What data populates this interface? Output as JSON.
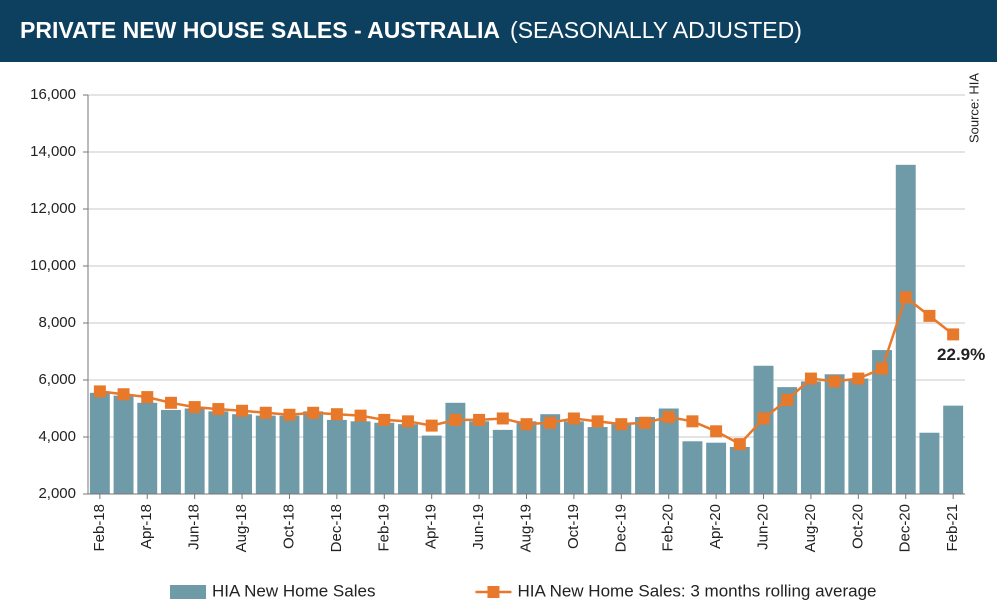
{
  "chart_data": {
    "type": "bar",
    "title": "PRIVATE NEW HOUSE SALES -  AUSTRALIA",
    "subtitle": "(SEASONALLY ADJUSTED)",
    "source": "Source: HIA",
    "annotation": "22.9%",
    "categories": [
      "Feb-18",
      null,
      "Apr-18",
      null,
      "Jun-18",
      null,
      "Aug-18",
      null,
      "Oct-18",
      null,
      "Dec-18",
      null,
      "Feb-19",
      null,
      "Apr-19",
      null,
      "Jun-19",
      null,
      "Aug-19",
      null,
      "Oct-19",
      null,
      "Dec-19",
      null,
      "Feb-20",
      null,
      "Apr-20",
      null,
      "Jun-20",
      null,
      "Aug-20",
      null,
      "Oct-20",
      null,
      "Dec-20",
      null,
      "Feb-21"
    ],
    "series": [
      {
        "name": "HIA New Home Sales",
        "type": "bar",
        "color": "#6f9aa8",
        "values": [
          5550,
          5450,
          5200,
          4950,
          5000,
          4900,
          4800,
          4750,
          4750,
          4900,
          4600,
          4550,
          4500,
          4450,
          4050,
          5200,
          4550,
          4250,
          4550,
          4800,
          4550,
          4350,
          4450,
          4700,
          5000,
          3850,
          3800,
          3650,
          6500,
          5750,
          5950,
          6200,
          6050,
          7050,
          13550,
          4150,
          5100
        ]
      },
      {
        "name": "HIA New Home Sales: 3 months rolling average",
        "type": "line",
        "color": "#e8792a",
        "values": [
          5600,
          5500,
          5400,
          5200,
          5050,
          4980,
          4920,
          4850,
          4780,
          4850,
          4800,
          4750,
          4600,
          4550,
          4400,
          4600,
          4600,
          4650,
          4450,
          4500,
          4650,
          4550,
          4450,
          4500,
          4700,
          4550,
          4200,
          3750,
          4650,
          5300,
          6050,
          5950,
          6050,
          6400,
          8900,
          8250,
          7600
        ]
      }
    ],
    "ylim": [
      2000,
      16000
    ],
    "yticks": [
      {
        "value": 2000,
        "label": "2,000"
      },
      {
        "value": 4000,
        "label": "4,000"
      },
      {
        "value": 6000,
        "label": "6,000"
      },
      {
        "value": 8000,
        "label": "8,000"
      },
      {
        "value": 10000,
        "label": "10,000"
      },
      {
        "value": 12000,
        "label": "12,000"
      },
      {
        "value": 14000,
        "label": "14,000"
      },
      {
        "value": 16000,
        "label": "16,000"
      }
    ],
    "grid": true
  }
}
